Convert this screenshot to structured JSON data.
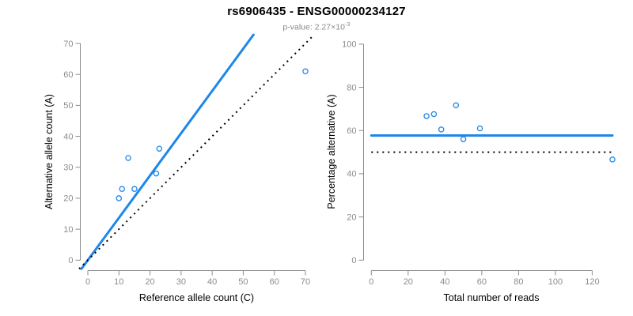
{
  "header": {
    "title": "rs6906435 - ENSG00000234127",
    "subtitle_prefix": "p-value: 2.27×10",
    "subtitle_exponent": "-3"
  },
  "colors": {
    "accent_blue": "#1E87E8",
    "dotted_black": "#000000",
    "axis_gray": "#8C8C8C",
    "subtitle_gray": "#8A8A8A",
    "text_black": "#000000"
  },
  "chart_data": [
    {
      "id": "allele-count-scatter",
      "type": "scatter",
      "xlabel": "Reference allele count (C)",
      "ylabel": "Alternative allele count (A)",
      "xlim": [
        0,
        70
      ],
      "ylim": [
        0,
        70
      ],
      "xticks": [
        0,
        10,
        20,
        30,
        40,
        50,
        60,
        70
      ],
      "yticks": [
        0,
        10,
        20,
        30,
        40,
        50,
        60,
        70
      ],
      "points": [
        [
          10,
          20
        ],
        [
          11,
          23
        ],
        [
          13,
          33
        ],
        [
          15,
          23
        ],
        [
          22,
          28
        ],
        [
          23,
          36
        ],
        [
          70,
          61
        ]
      ],
      "lines": [
        {
          "name": "fitted-ratio-line",
          "slope": 1.366,
          "intercept": 0,
          "style": "solid"
        },
        {
          "name": "identity-line",
          "slope": 1,
          "intercept": 0,
          "style": "dotted"
        }
      ],
      "grid": false,
      "legend": "none"
    },
    {
      "id": "percentage-alternative-scatter",
      "type": "scatter",
      "xlabel": "Total number of reads",
      "ylabel": "Percentage alternative (A)",
      "xlim": [
        0,
        131
      ],
      "ylim": [
        0,
        100
      ],
      "xticks": [
        0,
        20,
        40,
        60,
        80,
        100,
        120
      ],
      "yticks": [
        0,
        20,
        40,
        60,
        80,
        100
      ],
      "points": [
        [
          30,
          66.7
        ],
        [
          34,
          67.6
        ],
        [
          38,
          60.5
        ],
        [
          46,
          71.7
        ],
        [
          50,
          56.0
        ],
        [
          59,
          61.0
        ],
        [
          131,
          46.6
        ]
      ],
      "lines": [
        {
          "name": "fitted-percentage-line",
          "hline": 57.7,
          "style": "solid"
        },
        {
          "name": "null-50-percent-line",
          "hline": 50,
          "style": "dotted"
        }
      ],
      "grid": false,
      "legend": "none"
    }
  ]
}
